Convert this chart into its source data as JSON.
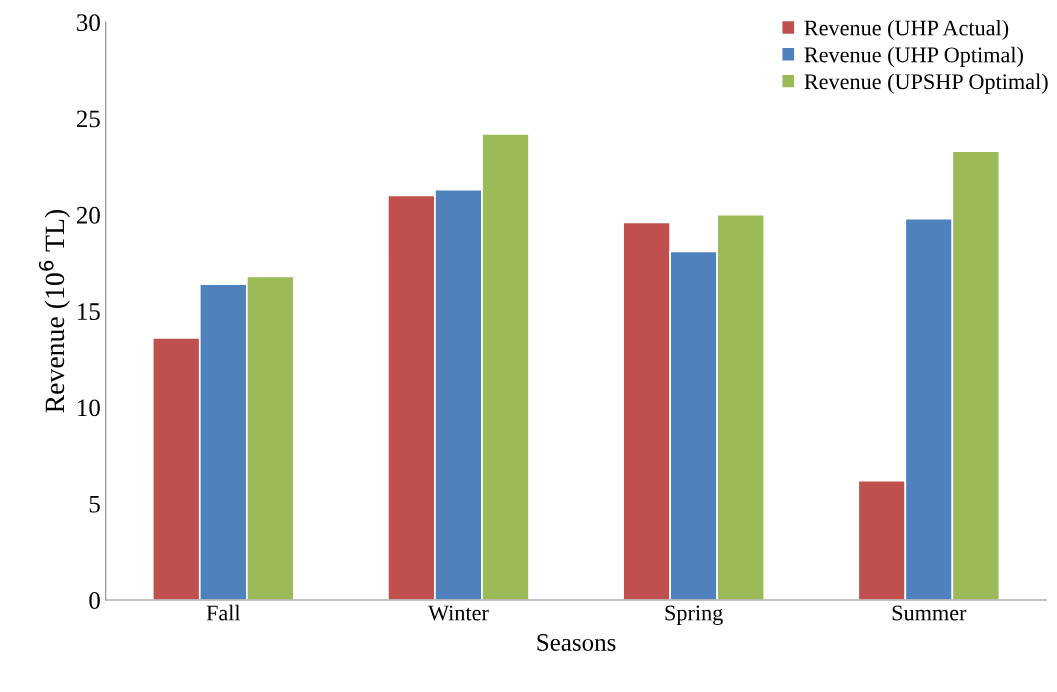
{
  "chart_data": {
    "type": "bar",
    "xlabel": "Seasons",
    "ylabel": "Revenue (10$^{6}$ TL)",
    "categories": [
      "Fall",
      "Winter",
      "Spring",
      "Summer"
    ],
    "series": [
      {
        "name": "Revenue (UHP Actual)",
        "color": "#c0504d",
        "values": [
          13.6,
          21.0,
          19.6,
          6.2
        ]
      },
      {
        "name": "Revenue (UHP Optimal)",
        "color": "#4f81bd",
        "values": [
          16.4,
          21.3,
          18.1,
          19.8
        ]
      },
      {
        "name": "Revenue (UPSHP Optimal)",
        "color": "#9bbb59",
        "values": [
          16.8,
          24.2,
          20.0,
          23.3
        ]
      }
    ],
    "ylim": [
      0,
      30
    ],
    "yticks": [
      0,
      5,
      10,
      15,
      20,
      25,
      30
    ],
    "grid": false,
    "legend": "top right"
  }
}
